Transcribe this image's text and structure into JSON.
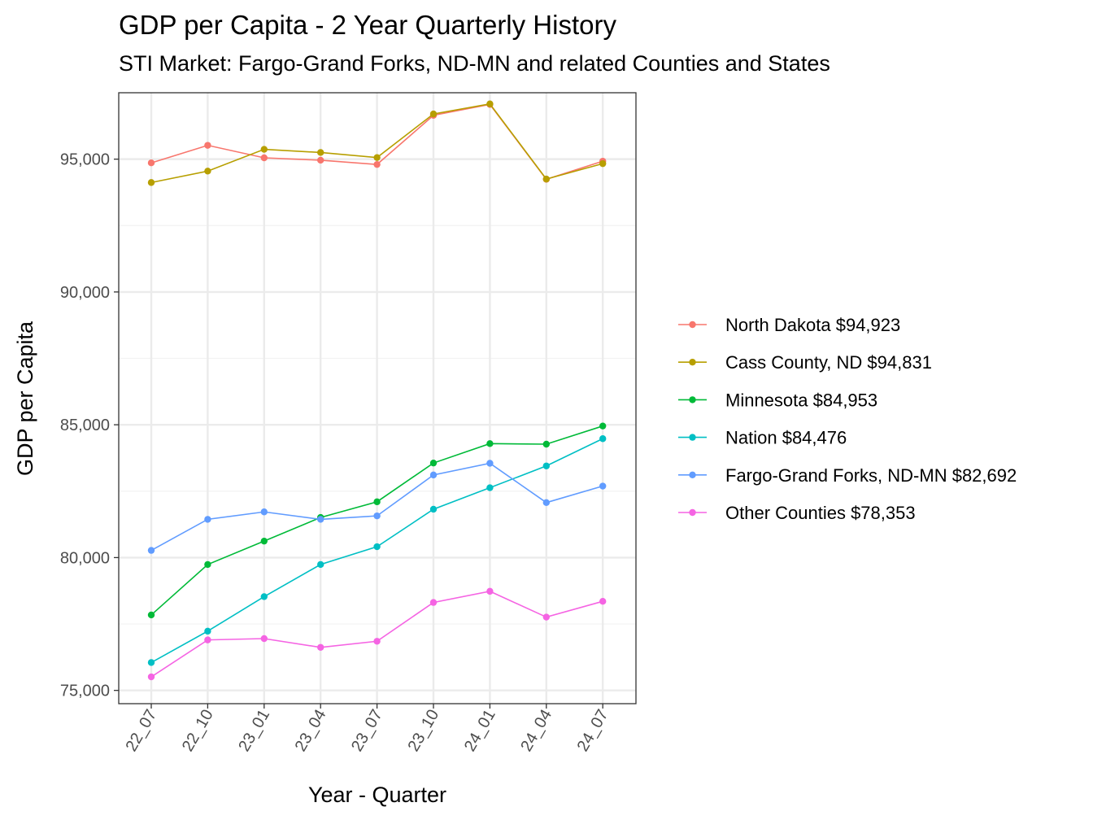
{
  "chart_data": {
    "type": "line",
    "title": "GDP per Capita - 2 Year Quarterly History",
    "subtitle": "STI Market: Fargo-Grand Forks, ND-MN and related Counties and States",
    "xlabel": "Year - Quarter",
    "ylabel": "GDP per Capita",
    "categories": [
      "22_07",
      "22_10",
      "23_01",
      "23_04",
      "23_07",
      "23_10",
      "24_01",
      "24_04",
      "24_07"
    ],
    "ylim": [
      74500,
      97500
    ],
    "yticks": [
      75000,
      80000,
      85000,
      90000,
      95000
    ],
    "ytick_labels": [
      "75,000",
      "80,000",
      "85,000",
      "90,000",
      "95,000"
    ],
    "grid": true,
    "legend_position": "right",
    "series": [
      {
        "name": "North Dakota $94,923",
        "color": "#F8766D",
        "values": [
          94860,
          95520,
          95050,
          94960,
          94800,
          96650,
          97060,
          94240,
          94923
        ]
      },
      {
        "name": "Cass County, ND $94,831",
        "color": "#B79F00",
        "values": [
          94120,
          94550,
          95370,
          95250,
          95060,
          96700,
          97080,
          94250,
          94831
        ]
      },
      {
        "name": "Minnesota $84,953",
        "color": "#00BA38",
        "values": [
          77840,
          79740,
          80620,
          81510,
          82100,
          83560,
          84290,
          84270,
          84953
        ]
      },
      {
        "name": "Nation $84,476",
        "color": "#00BFC4",
        "values": [
          76050,
          77230,
          78530,
          79740,
          80410,
          81820,
          82630,
          83450,
          84476
        ]
      },
      {
        "name": "Fargo-Grand Forks, ND-MN $82,692",
        "color": "#619CFF",
        "values": [
          80270,
          81440,
          81720,
          81440,
          81570,
          83110,
          83550,
          82070,
          82692
        ]
      },
      {
        "name": "Other Counties $78,353",
        "color": "#F564E3",
        "values": [
          75510,
          76900,
          76950,
          76620,
          76850,
          78310,
          78730,
          77760,
          78353
        ]
      }
    ]
  }
}
